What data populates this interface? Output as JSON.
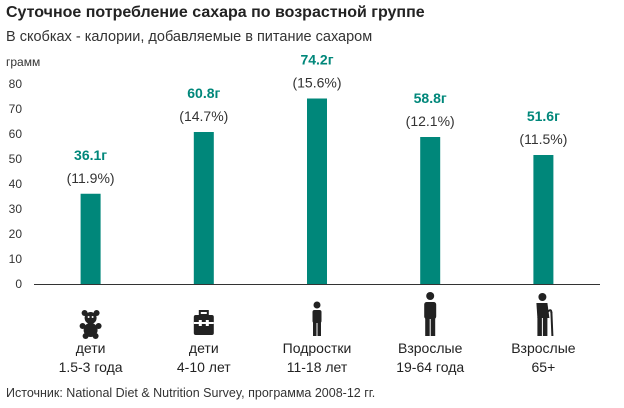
{
  "header": {
    "title": "Суточное потребление сахара по возрастной группе",
    "subtitle": "В скобках - калории, добавляемые в питание сахаром"
  },
  "footer": {
    "source": "Источник: National Diet & Nutrition Survey, программа 2008-12 гг."
  },
  "colors": {
    "bar": "#00877a",
    "value_label": "#00877a",
    "axis": "#333333",
    "gridline": "#d9d9d9"
  },
  "chart_data": {
    "type": "bar",
    "title": "Суточное потребление сахара по возрастной группе",
    "subtitle": "В скобках - калории, добавляемые в питание сахаром",
    "ylabel": "грамм",
    "ylim": [
      0,
      80
    ],
    "yticks": [
      0,
      10,
      20,
      30,
      40,
      50,
      60,
      70,
      80
    ],
    "grid": false,
    "categories": [
      {
        "line1": "дети",
        "line2": "1.5-3 года",
        "icon": "teddy-bear-icon"
      },
      {
        "line1": "дети",
        "line2": "4-10 лет",
        "icon": "schoolbag-icon"
      },
      {
        "line1": "Подростки",
        "line2": "11-18 лет",
        "icon": "teen-person-icon"
      },
      {
        "line1": "Взрослые",
        "line2": "19-64 года",
        "icon": "adult-person-icon"
      },
      {
        "line1": "Взрослые",
        "line2": "65+",
        "icon": "elderly-person-cane-icon"
      }
    ],
    "values": [
      36.1,
      60.8,
      74.2,
      58.8,
      51.6
    ],
    "value_labels": [
      "36.1г",
      "60.8г",
      "74.2г",
      "58.8г",
      "51.6г"
    ],
    "percent_labels": [
      "(11.9%)",
      "(14.7%)",
      "(15.6%)",
      "(12.1%)",
      "(11.5%)"
    ]
  }
}
